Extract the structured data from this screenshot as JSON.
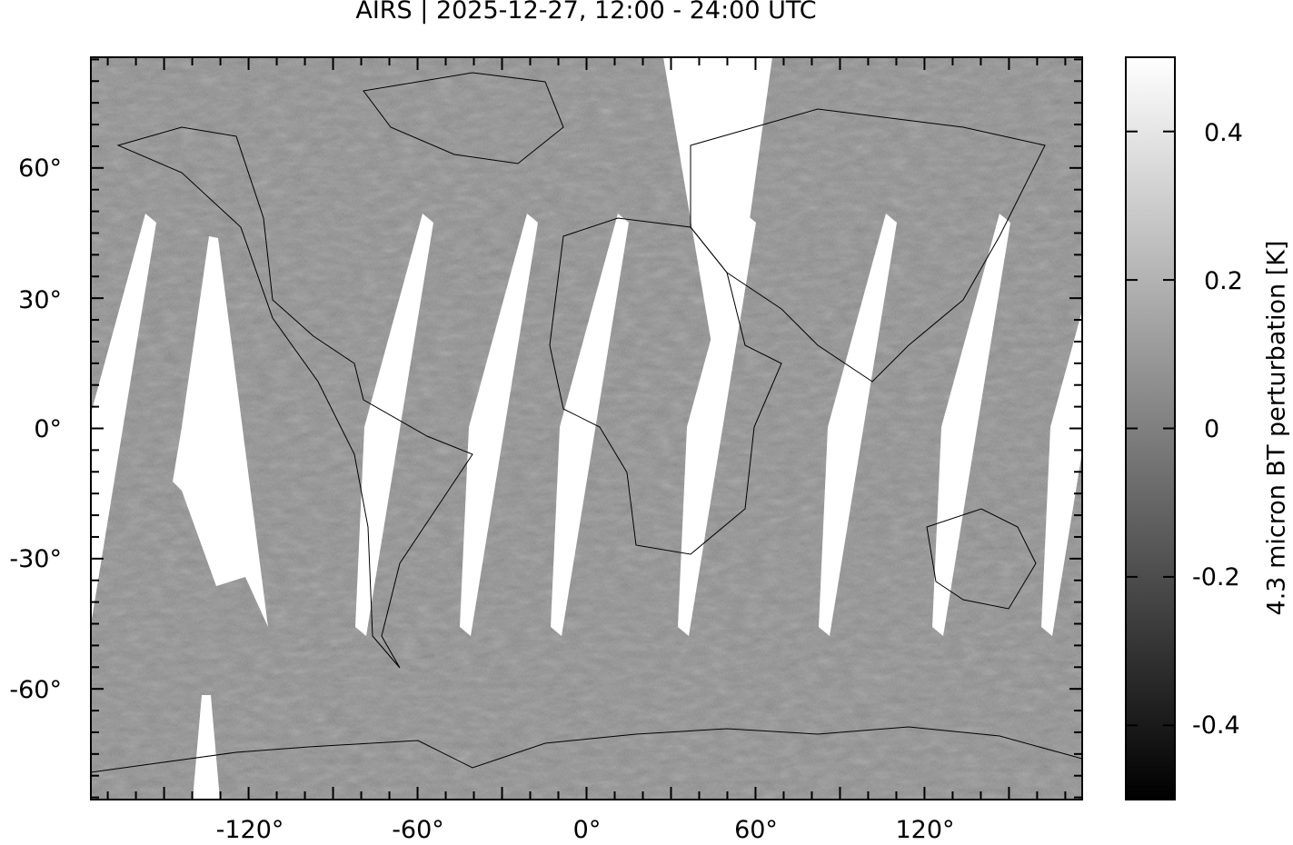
{
  "title": "AIRS | 2025-12-27, 12:00 - 24:00 UTC",
  "map": {
    "lon_range": [
      -176,
      176
    ],
    "lat_range": [
      -85.5,
      85.5
    ],
    "lon_tick_labels": [
      {
        "value": -120,
        "label": "-120°"
      },
      {
        "value": -60,
        "label": "-60°"
      },
      {
        "value": 0,
        "label": "0°"
      },
      {
        "value": 60,
        "label": "60°"
      },
      {
        "value": 120,
        "label": "120°"
      }
    ],
    "lat_tick_labels": [
      {
        "value": 60,
        "label": "60°"
      },
      {
        "value": 30,
        "label": "30°"
      },
      {
        "value": 0,
        "label": "0°"
      },
      {
        "value": -30,
        "label": "-30°"
      },
      {
        "value": -60,
        "label": "-60°"
      }
    ],
    "data_gap_color": "#ffffff",
    "coastline_color": "#000000"
  },
  "colorbar": {
    "label": "4.3 micron BT perturbation [K]",
    "range": [
      -0.5,
      0.5
    ],
    "colormap": "grayscale",
    "low_color": "#000000",
    "high_color": "#ffffff",
    "ticks": [
      {
        "value": 0.4,
        "label": "0.4"
      },
      {
        "value": 0.2,
        "label": "0.2"
      },
      {
        "value": 0,
        "label": "0"
      },
      {
        "value": -0.2,
        "label": "-0.2"
      },
      {
        "value": -0.4,
        "label": "-0.4"
      }
    ]
  }
}
